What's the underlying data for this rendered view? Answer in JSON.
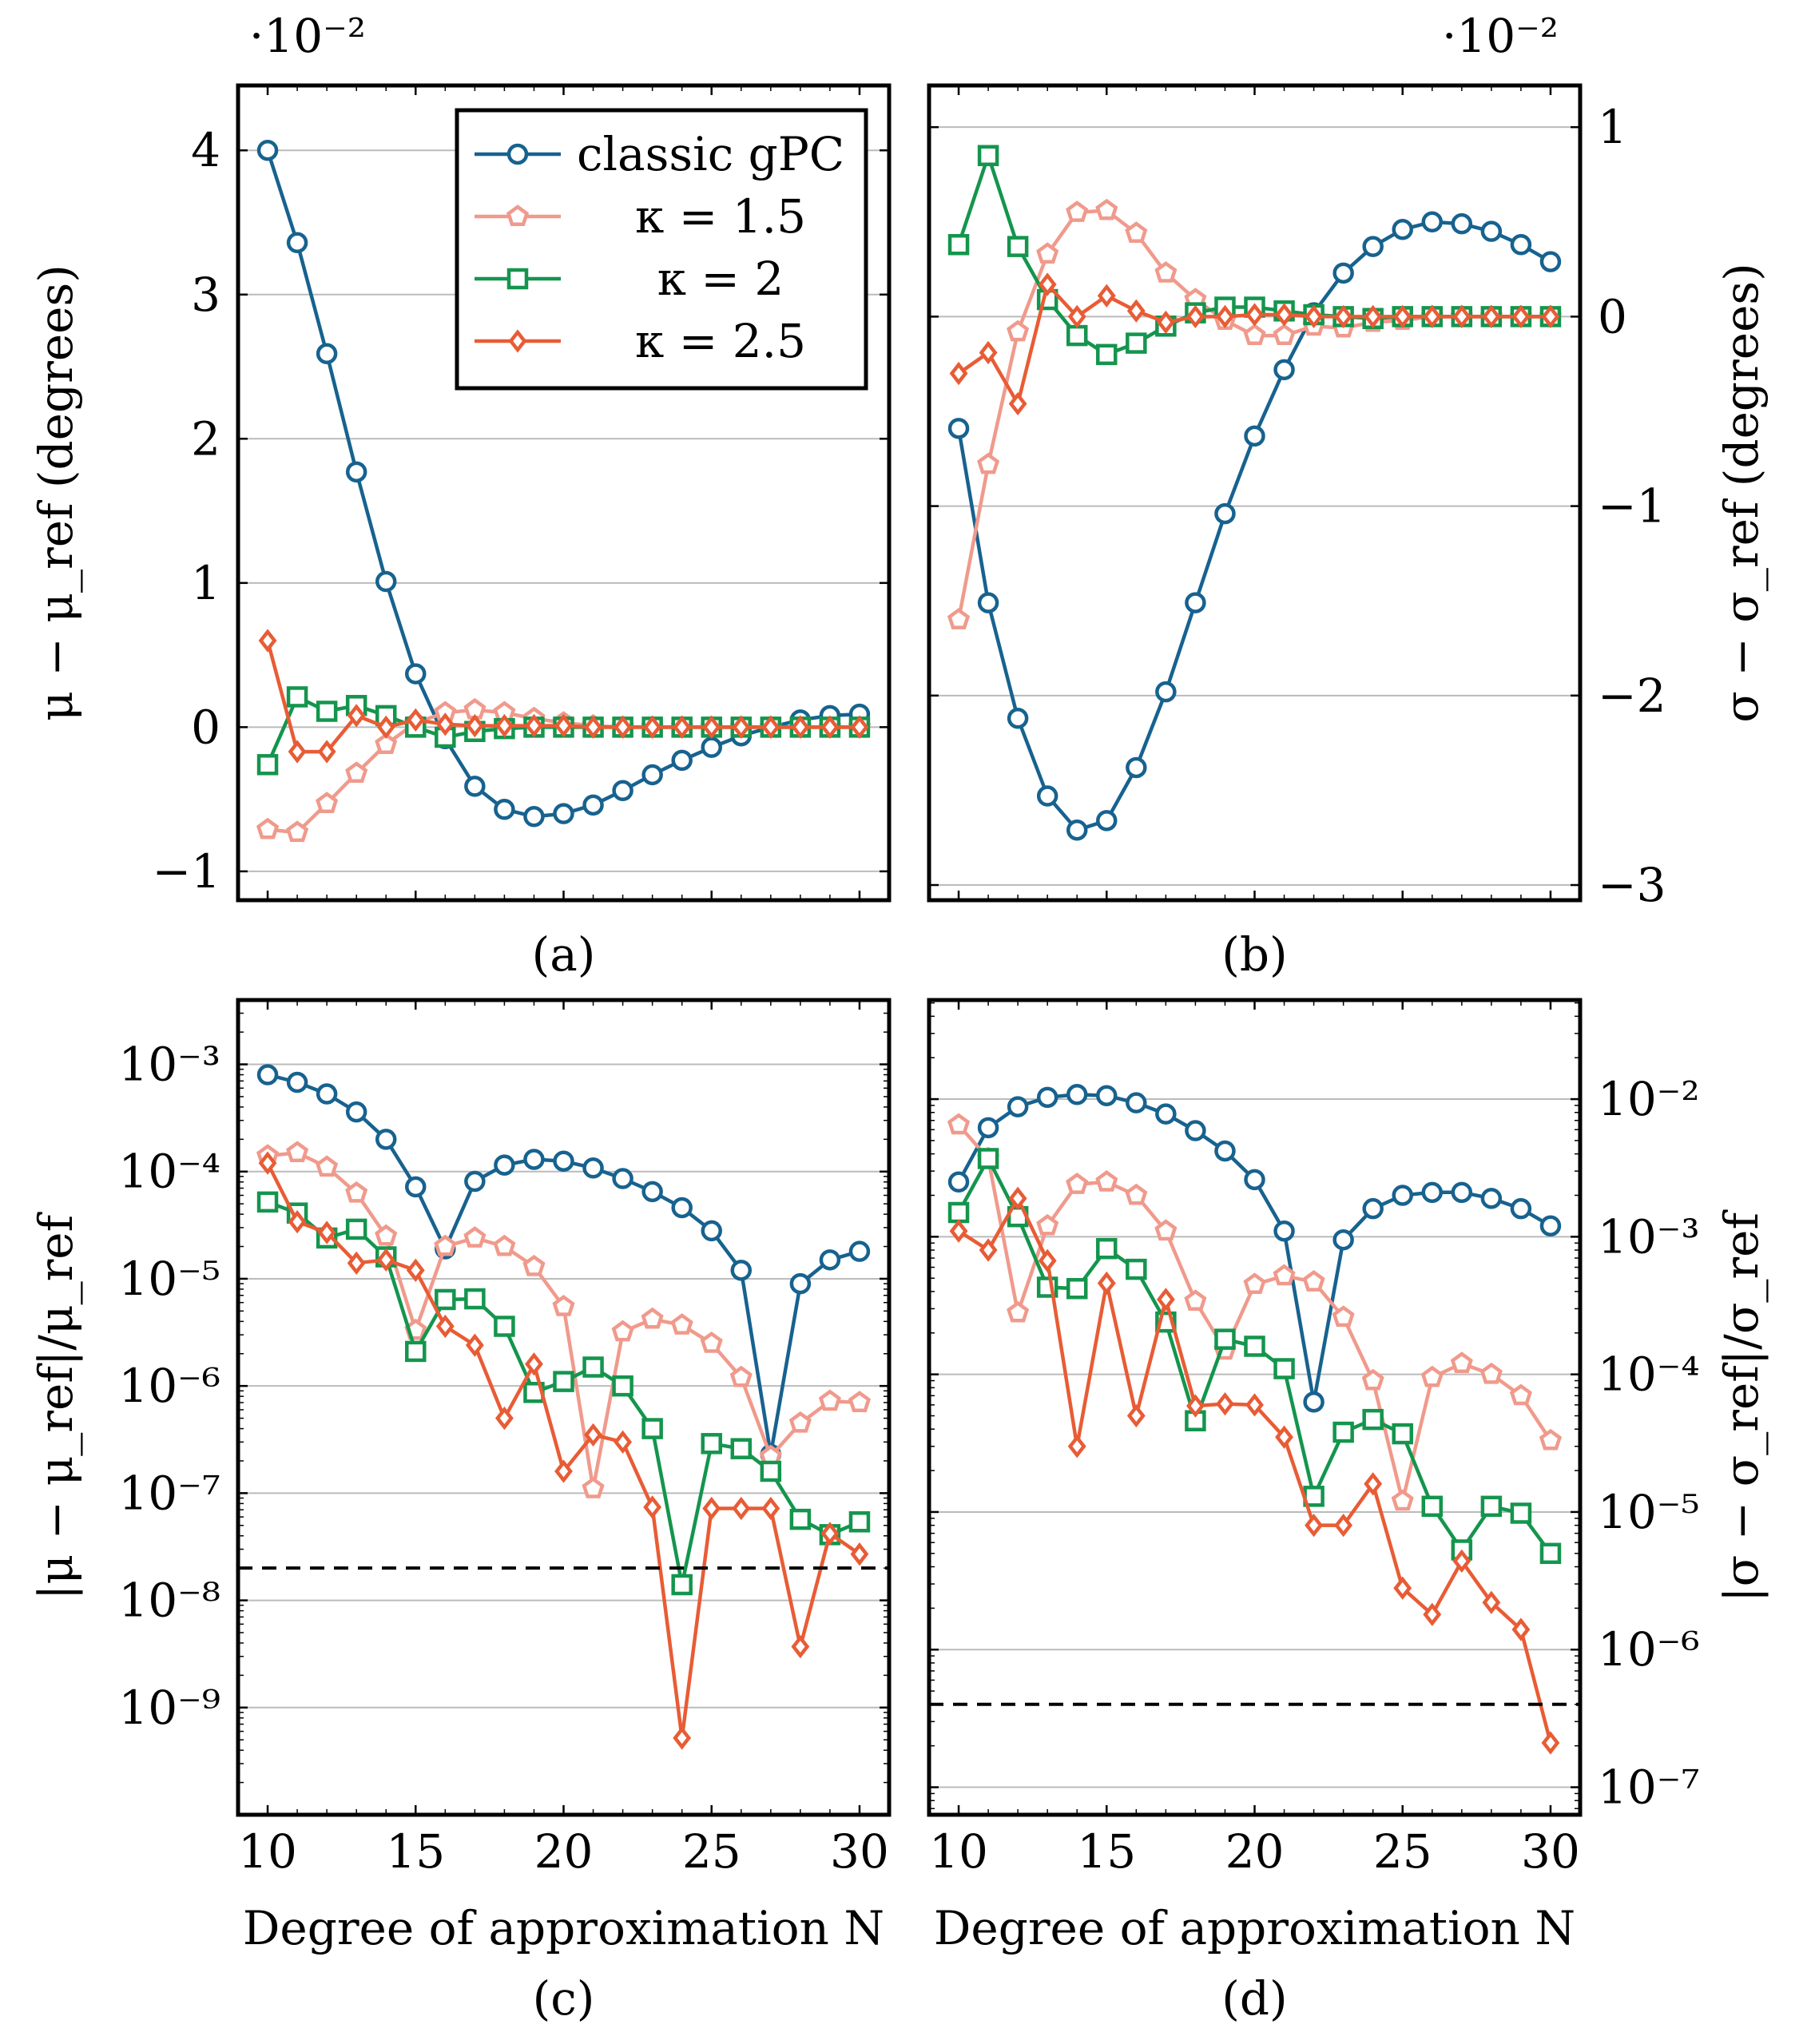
{
  "figure": {
    "xlabel": "Degree of approximation N",
    "series_names": [
      "classic gPC",
      "κ = 1.5",
      "κ = 2",
      "κ = 2.5"
    ],
    "colors": {
      "classic": "#17628f",
      "k15": "#f09a8c",
      "k2": "#14954d",
      "k25": "#e85c35",
      "grid": "#bbbbbb",
      "frame": "#000000"
    }
  },
  "chart_data": [
    {
      "panel": "a",
      "label": "(a)",
      "type": "line",
      "scale": "linear",
      "multiplier_label": "·10⁻²",
      "ylabel": "μ − μ_ref (degrees)",
      "yaxis_side": "left",
      "xlim": [
        9,
        31
      ],
      "ylim": [
        -1.2,
        4.45
      ],
      "xticks": [
        10,
        15,
        20,
        25,
        30
      ],
      "yticks": [
        -1,
        0,
        1,
        2,
        3,
        4
      ],
      "ytick_labels": [
        "−1",
        "0",
        "1",
        "2",
        "3",
        "4"
      ],
      "legend": "top-right",
      "x": [
        10,
        11,
        12,
        13,
        14,
        15,
        16,
        17,
        18,
        19,
        20,
        21,
        22,
        23,
        24,
        25,
        26,
        27,
        28,
        29,
        30
      ],
      "series": [
        {
          "name": "classic gPC",
          "key": "classic",
          "marker": "circle",
          "values": [
            4.0,
            3.36,
            2.59,
            1.77,
            1.01,
            0.37,
            -0.08,
            -0.41,
            -0.57,
            -0.62,
            -0.6,
            -0.54,
            -0.44,
            -0.33,
            -0.23,
            -0.14,
            -0.06,
            0.0,
            0.05,
            0.08,
            0.09
          ]
        },
        {
          "name": "κ = 1.5",
          "key": "k15",
          "marker": "pentagon",
          "values": [
            -0.71,
            -0.73,
            -0.53,
            -0.32,
            -0.12,
            0.03,
            0.1,
            0.12,
            0.1,
            0.06,
            0.03,
            0.01,
            0.0,
            0.0,
            0.0,
            0.0,
            0.0,
            0.0,
            0.0,
            0.0,
            0.0
          ]
        },
        {
          "name": "κ = 2",
          "key": "k2",
          "marker": "square",
          "values": [
            -0.26,
            0.21,
            0.11,
            0.15,
            0.08,
            0.0,
            -0.07,
            -0.03,
            -0.01,
            0.0,
            0.0,
            0.0,
            0.0,
            0.0,
            0.0,
            0.0,
            0.0,
            0.0,
            0.0,
            0.0,
            0.0
          ]
        },
        {
          "name": "κ = 2.5",
          "key": "k25",
          "marker": "diamond",
          "values": [
            0.6,
            -0.17,
            -0.17,
            0.08,
            0.0,
            0.05,
            0.02,
            0.01,
            0.01,
            0.01,
            0.01,
            0.0,
            0.0,
            0.0,
            0.0,
            0.0,
            0.0,
            0.0,
            0.0,
            0.0,
            0.0
          ]
        }
      ]
    },
    {
      "panel": "b",
      "label": "(b)",
      "type": "line",
      "scale": "linear",
      "multiplier_label": "·10⁻²",
      "ylabel": "σ − σ_ref (degrees)",
      "yaxis_side": "right",
      "xlim": [
        9,
        31
      ],
      "ylim": [
        -3.08,
        1.22
      ],
      "xticks": [
        10,
        15,
        20,
        25,
        30
      ],
      "yticks": [
        -3,
        -2,
        -1,
        0,
        1
      ],
      "ytick_labels": [
        "−3",
        "−2",
        "−1",
        "0",
        "1"
      ],
      "x": [
        10,
        11,
        12,
        13,
        14,
        15,
        16,
        17,
        18,
        19,
        20,
        21,
        22,
        23,
        24,
        25,
        26,
        27,
        28,
        29,
        30
      ],
      "series": [
        {
          "name": "classic gPC",
          "key": "classic",
          "marker": "circle",
          "values": [
            -0.59,
            -1.51,
            -2.12,
            -2.53,
            -2.71,
            -2.66,
            -2.38,
            -1.98,
            -1.51,
            -1.04,
            -0.63,
            -0.28,
            0.02,
            0.23,
            0.37,
            0.46,
            0.5,
            0.49,
            0.45,
            0.38,
            0.29
          ]
        },
        {
          "name": "κ = 1.5",
          "key": "k15",
          "marker": "pentagon",
          "values": [
            -1.6,
            -0.78,
            -0.08,
            0.33,
            0.55,
            0.56,
            0.44,
            0.23,
            0.09,
            -0.02,
            -0.1,
            -0.1,
            -0.05,
            -0.06,
            -0.03,
            -0.02,
            0.0,
            0.0,
            0.0,
            0.0,
            0.0
          ]
        },
        {
          "name": "κ = 2",
          "key": "k2",
          "marker": "square",
          "values": [
            0.38,
            0.85,
            0.37,
            0.09,
            -0.1,
            -0.2,
            -0.14,
            -0.05,
            0.02,
            0.05,
            0.05,
            0.03,
            0.01,
            0.0,
            -0.01,
            0.0,
            0.0,
            0.0,
            0.0,
            0.0,
            0.0
          ]
        },
        {
          "name": "κ = 2.5",
          "key": "k25",
          "marker": "diamond",
          "values": [
            -0.3,
            -0.19,
            -0.46,
            0.17,
            0.0,
            0.11,
            0.03,
            -0.03,
            0.0,
            0.0,
            0.01,
            0.01,
            0.0,
            0.0,
            0.0,
            0.0,
            0.0,
            0.0,
            0.0,
            0.0,
            0.0
          ]
        }
      ]
    },
    {
      "panel": "c",
      "label": "(c)",
      "type": "line",
      "scale": "log",
      "ylabel": "|μ − μ_ref|/μ_ref",
      "yaxis_side": "left",
      "xlabel": "Degree of approximation N",
      "xlim": [
        9,
        31
      ],
      "ylim_log10": [
        -10.0,
        -2.4
      ],
      "xticks": [
        10,
        15,
        20,
        25,
        30
      ],
      "ytick_exponents": [
        -9,
        -8,
        -7,
        -6,
        -5,
        -4,
        -3
      ],
      "ytick_labels": [
        "10⁻⁹",
        "10⁻⁸",
        "10⁻⁷",
        "10⁻⁶",
        "10⁻⁵",
        "10⁻⁴",
        "10⁻³"
      ],
      "reference_line": 2e-08,
      "x": [
        10,
        11,
        12,
        13,
        14,
        15,
        16,
        17,
        18,
        19,
        20,
        21,
        22,
        23,
        24,
        25,
        26,
        27,
        28,
        29,
        30
      ],
      "series": [
        {
          "name": "classic gPC",
          "key": "classic",
          "marker": "circle",
          "values": [
            0.0008,
            0.00068,
            0.00053,
            0.00036,
            0.0002,
            7.2e-05,
            1.9e-05,
            8.1e-05,
            0.000115,
            0.00013,
            0.000125,
            0.000108,
            8.6e-05,
            6.5e-05,
            4.6e-05,
            2.8e-05,
            1.2e-05,
            2.3e-07,
            9e-06,
            1.5e-05,
            1.8e-05
          ]
        },
        {
          "name": "κ = 1.5",
          "key": "k15",
          "marker": "pentagon",
          "values": [
            0.00014,
            0.00015,
            0.00011,
            6.3e-05,
            2.5e-05,
            3.3e-06,
            2e-05,
            2.4e-05,
            2e-05,
            1.3e-05,
            5.5e-06,
            1.1e-07,
            3.2e-06,
            4.2e-06,
            3.7e-06,
            2.5e-06,
            1.2e-06,
            2.2e-07,
            4.5e-07,
            7.2e-07,
            7e-07
          ]
        },
        {
          "name": "κ = 2",
          "key": "k2",
          "marker": "square",
          "values": [
            5.2e-05,
            4.1e-05,
            2.4e-05,
            2.9e-05,
            1.6e-05,
            2.1e-06,
            6.4e-06,
            6.5e-06,
            3.6e-06,
            8.7e-07,
            1.1e-06,
            1.5e-06,
            1e-06,
            4e-07,
            1.4e-08,
            2.9e-07,
            2.6e-07,
            1.6e-07,
            5.7e-08,
            4.1e-08,
            5.4e-08
          ]
        },
        {
          "name": "κ = 2.5",
          "key": "k25",
          "marker": "diamond",
          "values": [
            0.00012,
            3.4e-05,
            2.7e-05,
            1.4e-05,
            1.5e-05,
            1.2e-05,
            3.6e-06,
            2.4e-06,
            5e-07,
            1.6e-06,
            1.6e-07,
            3.5e-07,
            3e-07,
            7.4e-08,
            5.2e-10,
            7.2e-08,
            7.2e-08,
            7.2e-08,
            3.7e-09,
            4.2e-08,
            2.7e-08
          ]
        }
      ]
    },
    {
      "panel": "d",
      "label": "(d)",
      "type": "line",
      "scale": "log",
      "ylabel": "|σ − σ_ref|/σ_ref",
      "yaxis_side": "right",
      "xlabel": "Degree of approximation N",
      "xlim": [
        9,
        31
      ],
      "ylim_log10": [
        -7.2,
        -1.28
      ],
      "xticks": [
        10,
        15,
        20,
        25,
        30
      ],
      "ytick_exponents": [
        -7,
        -6,
        -5,
        -4,
        -3,
        -2
      ],
      "ytick_labels": [
        "10⁻⁷",
        "10⁻⁶",
        "10⁻⁵",
        "10⁻⁴",
        "10⁻³",
        "10⁻²"
      ],
      "reference_line": 4e-07,
      "x": [
        10,
        11,
        12,
        13,
        14,
        15,
        16,
        17,
        18,
        19,
        20,
        21,
        22,
        23,
        24,
        25,
        26,
        27,
        28,
        29,
        30
      ],
      "series": [
        {
          "name": "classic gPC",
          "key": "classic",
          "marker": "circle",
          "values": [
            0.0025,
            0.0062,
            0.0088,
            0.0103,
            0.0108,
            0.0106,
            0.0094,
            0.0078,
            0.0059,
            0.0042,
            0.0026,
            0.0011,
            6.3e-05,
            0.00095,
            0.0016,
            0.002,
            0.0021,
            0.0021,
            0.0019,
            0.0016,
            0.0012
          ]
        },
        {
          "name": "κ = 1.5",
          "key": "k15",
          "marker": "pentagon",
          "values": [
            0.0065,
            0.0037,
            0.00028,
            0.0012,
            0.0024,
            0.0025,
            0.002,
            0.0011,
            0.00034,
            0.00015,
            0.00045,
            0.00052,
            0.00047,
            0.00026,
            9e-05,
            1.2e-05,
            9.5e-05,
            0.00012,
            0.0001,
            7e-05,
            3.3e-05
          ]
        },
        {
          "name": "κ = 2",
          "key": "k2",
          "marker": "square",
          "values": [
            0.0015,
            0.0037,
            0.0014,
            0.00043,
            0.00042,
            0.00082,
            0.00058,
            0.00024,
            4.6e-05,
            0.00018,
            0.00016,
            0.00011,
            1.3e-05,
            3.8e-05,
            4.7e-05,
            3.7e-05,
            1.1e-05,
            5.3e-06,
            1.1e-05,
            9.8e-06,
            5e-06
          ]
        },
        {
          "name": "κ = 2.5",
          "key": "k25",
          "marker": "diamond",
          "values": [
            0.0011,
            0.0008,
            0.0019,
            0.00067,
            3e-05,
            0.00046,
            5e-05,
            0.00035,
            5.9e-05,
            6.1e-05,
            6e-05,
            3.5e-05,
            8e-06,
            8e-06,
            1.6e-05,
            2.8e-06,
            1.8e-06,
            4.4e-06,
            2.2e-06,
            1.4e-06,
            2.1e-07
          ]
        }
      ]
    }
  ]
}
